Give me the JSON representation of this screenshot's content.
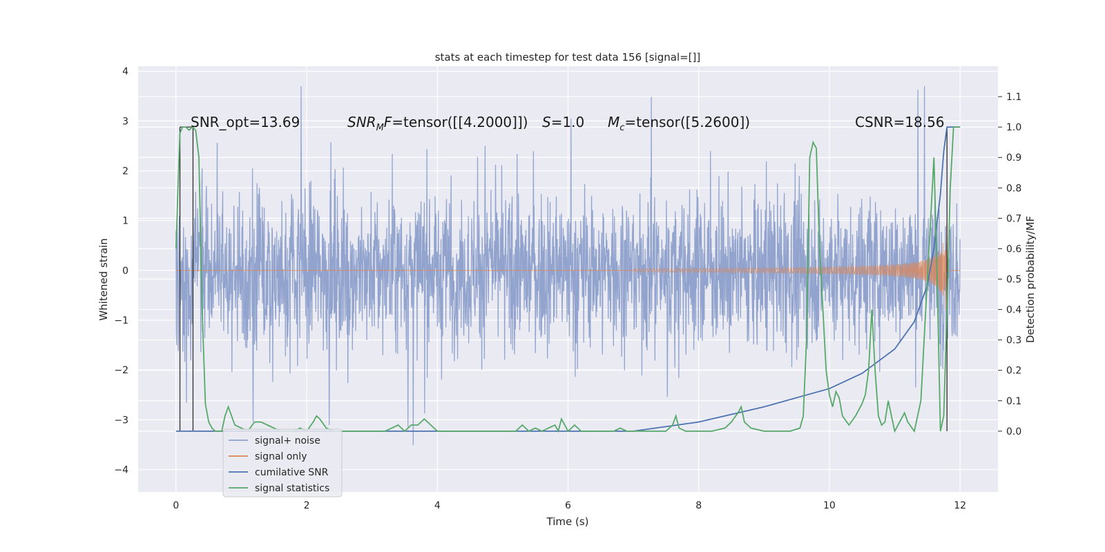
{
  "chart_data": {
    "type": "line",
    "title": "stats at each timestep for test data 156 [signal=[]]",
    "xlabel": "Time (s)",
    "ylabel": "Whitened strain",
    "y2label": "Detection probability/MF",
    "xlim": [
      -0.58,
      12.58
    ],
    "ylim": [
      -4.45,
      4.1
    ],
    "y2lim": [
      -0.2,
      1.2
    ],
    "xticks": [
      0,
      2,
      4,
      6,
      8,
      10,
      12
    ],
    "xtick_labels": [
      "0",
      "2",
      "4",
      "6",
      "8",
      "10",
      "12"
    ],
    "yticks": [
      4,
      3,
      2,
      1,
      0,
      -1,
      -2,
      -3,
      -4
    ],
    "ytick_labels": [
      "4",
      "3",
      "2",
      "1",
      "0",
      "−1",
      "−2",
      "−3",
      "−4"
    ],
    "y2ticks": [
      1.1,
      1.0,
      0.9,
      0.8,
      0.7,
      0.6,
      0.5,
      0.4,
      0.3,
      0.2,
      0.1,
      0.0
    ],
    "y2tick_labels": [
      "1.1",
      "1.0",
      "0.9",
      "0.8",
      "0.7",
      "0.6",
      "0.5",
      "0.4",
      "0.3",
      "0.2",
      "0.1",
      "0.0"
    ],
    "annotations": {
      "snr_opt": "SNR_opt=13.69",
      "snr_mf_symbol": "SNR",
      "snr_mf_subscript": "M",
      "snr_mf_symbol2": "F",
      "snr_mf_value": "=tensor([[4.2000]])",
      "s_symbol": "S",
      "s_value": "=1.0",
      "mc_symbol": "M",
      "mc_subscript": "c",
      "mc_value": "=tensor([5.2600])",
      "csnr": "CSNR=18.56"
    },
    "series": [
      {
        "name": "signal+ noise",
        "color": "#8da0cb",
        "axis": "left",
        "description_range": [
          0,
          12
        ],
        "typical_amplitude": 1.3,
        "max_amplitude": 3.7
      },
      {
        "name": "signal only",
        "color": "#dd8452",
        "axis": "left",
        "chirp_start": 7.0,
        "merger_time": 11.8,
        "peak_amplitude": 1.0
      },
      {
        "name": "cumilative SNR",
        "color": "#4c72b0",
        "axis": "right",
        "x": [
          0,
          7.0,
          8.0,
          9.0,
          10.0,
          10.5,
          11.0,
          11.3,
          11.5,
          11.6,
          11.7,
          11.75,
          11.8,
          12.0
        ],
        "y": [
          0.0,
          0.0,
          0.03,
          0.08,
          0.14,
          0.19,
          0.27,
          0.36,
          0.48,
          0.6,
          0.78,
          0.92,
          1.0,
          1.0
        ]
      },
      {
        "name": "signal statistics",
        "color": "#55a868",
        "axis": "right",
        "x": [
          0.0,
          0.03,
          0.06,
          0.1,
          0.15,
          0.2,
          0.25,
          0.3,
          0.35,
          0.4,
          0.45,
          0.5,
          0.55,
          0.6,
          0.7,
          0.75,
          0.8,
          0.85,
          0.9,
          1.0,
          1.1,
          1.2,
          1.3,
          1.4,
          1.5,
          1.6,
          1.7,
          1.8,
          1.9,
          2.0,
          2.1,
          2.15,
          2.2,
          2.3,
          2.4,
          2.5,
          2.7,
          3.0,
          3.2,
          3.3,
          3.4,
          3.5,
          3.6,
          3.7,
          3.8,
          3.9,
          4.0,
          4.2,
          4.5,
          4.8,
          5.0,
          5.2,
          5.3,
          5.4,
          5.5,
          5.6,
          5.7,
          5.8,
          5.85,
          5.9,
          6.0,
          6.1,
          6.2,
          6.3,
          6.5,
          6.7,
          6.8,
          6.9,
          7.0,
          7.3,
          7.5,
          7.6,
          7.65,
          7.7,
          7.8,
          8.0,
          8.2,
          8.4,
          8.5,
          8.6,
          8.65,
          8.7,
          8.8,
          9.0,
          9.2,
          9.4,
          9.55,
          9.6,
          9.65,
          9.7,
          9.75,
          9.8,
          9.85,
          9.9,
          9.95,
          10.0,
          10.05,
          10.1,
          10.15,
          10.2,
          10.3,
          10.4,
          10.5,
          10.55,
          10.6,
          10.65,
          10.7,
          10.75,
          10.8,
          10.85,
          10.9,
          10.95,
          11.0,
          11.05,
          11.1,
          11.15,
          11.2,
          11.3,
          11.4,
          11.45,
          11.5,
          11.55,
          11.6,
          11.65,
          11.7,
          11.75,
          11.8,
          11.85,
          11.9,
          11.95,
          12.0
        ],
        "y": [
          0.6,
          0.8,
          0.98,
          1.0,
          1.0,
          0.99,
          1.0,
          0.99,
          0.9,
          0.4,
          0.09,
          0.03,
          0.01,
          0.0,
          0.0,
          0.05,
          0.08,
          0.05,
          0.02,
          0.01,
          0.0,
          0.03,
          0.03,
          0.02,
          0.01,
          0.0,
          0.0,
          0.0,
          0.01,
          0.0,
          0.03,
          0.05,
          0.04,
          0.01,
          0.0,
          0.0,
          0.0,
          0.0,
          0.0,
          0.01,
          0.02,
          0.0,
          0.02,
          0.02,
          0.04,
          0.02,
          0.0,
          0.0,
          0.0,
          0.0,
          0.0,
          0.0,
          0.02,
          0.0,
          0.01,
          0.0,
          0.01,
          0.02,
          0.0,
          0.04,
          0.0,
          0.02,
          0.0,
          0.0,
          0.0,
          0.0,
          0.01,
          0.0,
          0.0,
          0.0,
          0.0,
          0.02,
          0.05,
          0.01,
          0.0,
          0.0,
          0.0,
          0.01,
          0.03,
          0.06,
          0.08,
          0.03,
          0.01,
          0.0,
          0.0,
          0.0,
          0.01,
          0.05,
          0.3,
          0.9,
          0.95,
          0.93,
          0.6,
          0.4,
          0.2,
          0.12,
          0.08,
          0.13,
          0.11,
          0.05,
          0.02,
          0.05,
          0.09,
          0.12,
          0.2,
          0.4,
          0.2,
          0.05,
          0.02,
          0.03,
          0.1,
          0.05,
          0.0,
          0.02,
          0.04,
          0.06,
          0.03,
          0.0,
          0.1,
          0.3,
          0.5,
          0.7,
          0.9,
          0.5,
          0.0,
          0.05,
          0.4,
          0.8,
          1.0,
          1.0,
          1.0
        ]
      },
      {
        "name": "signal statistics",
        "color": "#55a868",
        "axis": "right",
        "legend_hidden_entry": "signal+ noise"
      }
    ],
    "threshold_lines": [
      {
        "x": 0.06,
        "color": "#2d2d2d"
      },
      {
        "x": 0.26,
        "color": "#2d2d2d"
      },
      {
        "x": 11.8,
        "color": "#2d2d2d"
      }
    ],
    "legend": {
      "placement": "lower-left",
      "entries": [
        {
          "label": "signal+ noise",
          "color": "#8da0cb"
        },
        {
          "label": "signal only",
          "color": "#dd8452"
        },
        {
          "label": "cumilative SNR",
          "color": "#4c72b0"
        },
        {
          "label": "signal statistics",
          "color": "#55a868"
        }
      ]
    }
  }
}
